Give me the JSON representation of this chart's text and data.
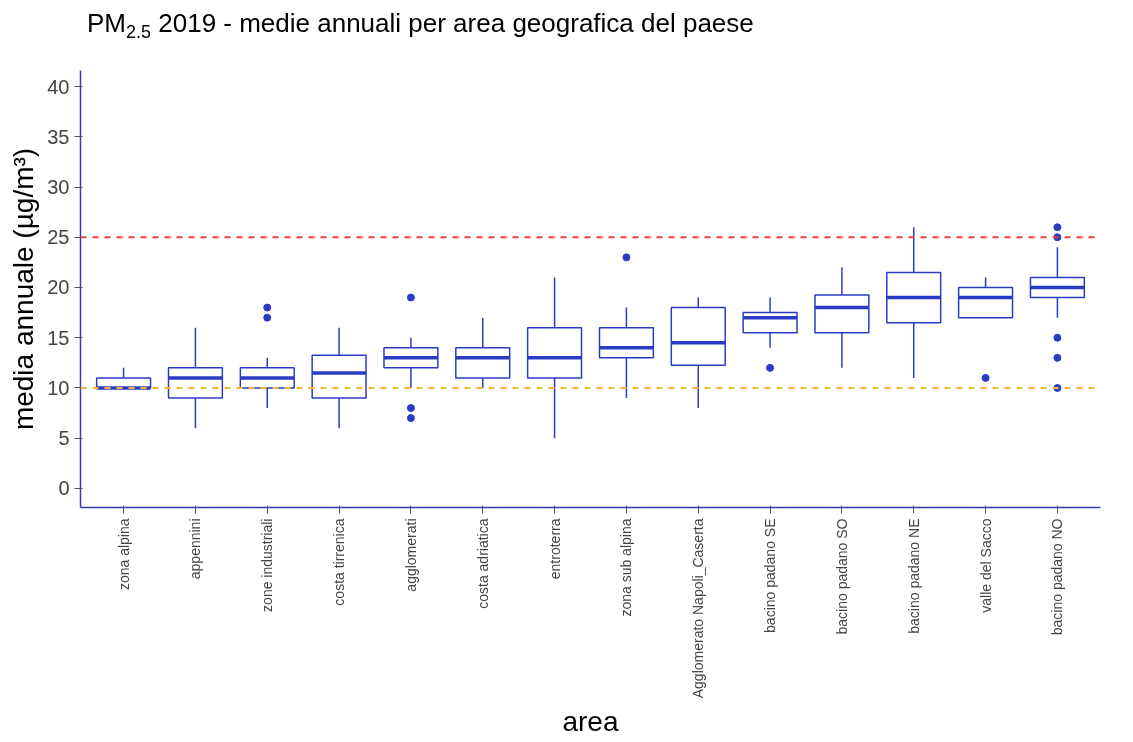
{
  "chart_data": {
    "type": "box",
    "title": "PM$_{2.5}$ 2019 - medie annuali per area geografica del paese",
    "xlabel": "area",
    "ylabel": "media annuale (µg/m³)",
    "color": "#2b3cc4",
    "categories": [
      "zona alpina",
      "appennini",
      "zone industriali",
      "costa tirrenica",
      "agglomerati",
      "costa adriatica",
      "entroterra",
      "zona sub alpina",
      "Agglomerato Napoli_Caserta",
      "bacino padano SE",
      "bacino padano SO",
      "bacino padano NE",
      "valle del Sacco",
      "bacino padano NO"
    ],
    "boxes": [
      {
        "low": 10,
        "q1": 10,
        "median": 10,
        "q3": 11,
        "high": 12
      },
      {
        "low": 6,
        "q1": 9,
        "median": 11,
        "q3": 12,
        "high": 16
      },
      {
        "low": 8,
        "q1": 10,
        "median": 11,
        "q3": 12,
        "high": 13,
        "outliers": [
          17,
          18
        ]
      },
      {
        "low": 6,
        "q1": 9,
        "median": 11.5,
        "q3": 13.25,
        "high": 16
      },
      {
        "low": 10,
        "q1": 12,
        "median": 13,
        "q3": 14,
        "high": 15,
        "outliers": [
          7,
          8,
          19
        ]
      },
      {
        "low": 10,
        "q1": 11,
        "median": 13,
        "q3": 14,
        "high": 17
      },
      {
        "low": 5,
        "q1": 11,
        "median": 13,
        "q3": 16,
        "high": 21
      },
      {
        "low": 9,
        "q1": 13,
        "median": 14,
        "q3": 16,
        "high": 18,
        "outliers": [
          23
        ]
      },
      {
        "low": 8,
        "q1": 12.25,
        "median": 14.5,
        "q3": 18,
        "high": 19
      },
      {
        "low": 14,
        "q1": 15.5,
        "median": 17,
        "q3": 17.5,
        "high": 19,
        "outliers": [
          12
        ]
      },
      {
        "low": 12,
        "q1": 15.5,
        "median": 18,
        "q3": 19.25,
        "high": 22
      },
      {
        "low": 11,
        "q1": 16.5,
        "median": 19,
        "q3": 21.5,
        "high": 26
      },
      {
        "low": 17,
        "q1": 17,
        "median": 19,
        "q3": 20,
        "high": 21,
        "outliers": [
          11
        ]
      },
      {
        "low": 17,
        "q1": 19,
        "median": 20,
        "q3": 21,
        "high": 24,
        "outliers": [
          10,
          13,
          15,
          25,
          26
        ]
      }
    ],
    "ylim": [
      -1.9,
      41.6
    ],
    "yticks": [
      0,
      5,
      10,
      15,
      20,
      25,
      30,
      35,
      40
    ],
    "grid": false,
    "ref_lines": [
      {
        "axis": "y",
        "value": 25,
        "color": "#e8403a",
        "line_style": "dashed"
      },
      {
        "axis": "y",
        "value": 10,
        "color": "#f5b731",
        "line_style": "dashed"
      }
    ]
  }
}
